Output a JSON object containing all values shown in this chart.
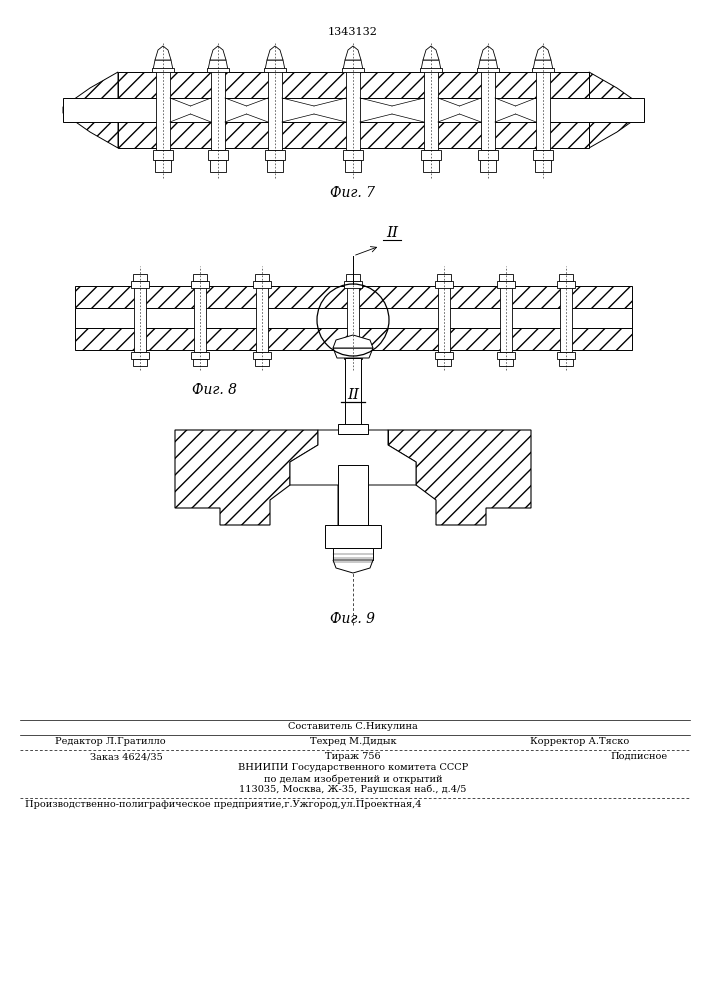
{
  "title": "1343132",
  "fig7_label": "Фиг. 7",
  "fig8_label": "Фиг. 8",
  "fig9_label": "Фиг. 9",
  "roman_II_fig8": "II",
  "roman_II_fig9": "II",
  "footer_composer": "Составитель С.Никулина",
  "footer_editor": "Редактор Л.Гратилло",
  "footer_techred": "Техред М.Дидык",
  "footer_corrector": "Корректор А.Тяско",
  "footer_order": "Заказ 4624/35",
  "footer_tirazh": "Тираж 756",
  "footer_podpisnoe": "Подписное",
  "footer_vniipи": "ВНИИПИ Государственного комитета СССР",
  "footer_dela": "по делам изобретений и открытий",
  "footer_addr": "113035, Москва, Ж-35, Раушская наб., д.4/5",
  "footer_prod": "Производственно-полиграфическое предприятие,г.Ужгород,ул.Проектная,4",
  "bg_color": "#ffffff",
  "lc": "#000000"
}
